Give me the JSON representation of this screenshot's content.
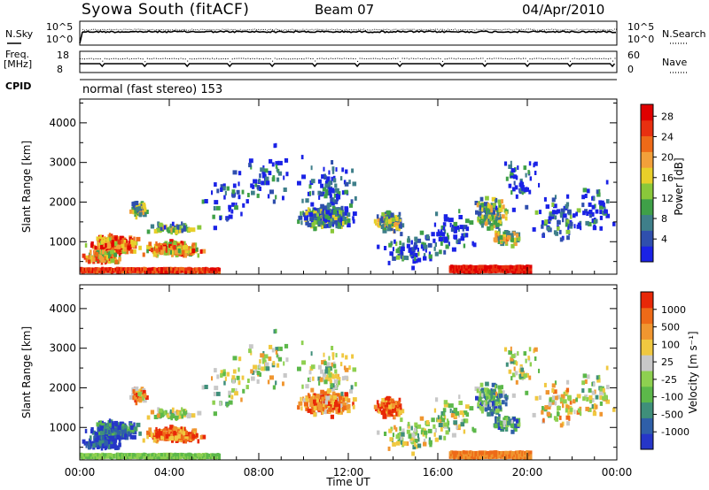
{
  "header": {
    "station": "Syowa South (fitACF)",
    "beam": "Beam 07",
    "date": "04/Apr/2010"
  },
  "chart_data": {
    "type": "heatmap",
    "time_axis": {
      "label": "Time UT",
      "range": [
        "00:00",
        "24:00"
      ],
      "ticks": [
        "00:00",
        "04:00",
        "08:00",
        "12:00",
        "16:00",
        "20:00",
        "00:00"
      ]
    },
    "noise_panel": {
      "left_label": "N.Sky",
      "right_label": "N.Search",
      "left_ticks": [
        "10^5",
        "10^0"
      ],
      "right_ticks": [
        "10^5",
        "10^0"
      ]
    },
    "freq_panel": {
      "left_label_1": "Freq.",
      "left_label_2": "[MHz]",
      "right_label": "Nave",
      "left_ticks": [
        "18",
        "8"
      ],
      "right_ticks": [
        "60",
        "0"
      ]
    },
    "cpid_panel": {
      "label": "CPID",
      "text": "normal (fast stereo) 153"
    },
    "power_panel": {
      "ylabel": "Slant Range [km]",
      "yticks": [
        1000,
        2000,
        3000,
        4000
      ],
      "ylim": [
        180,
        4600
      ],
      "colorbar_label": "Power [dB]",
      "colorbar_ticks": [
        "4",
        "8",
        "12",
        "16",
        "20",
        "24",
        "28"
      ],
      "colors": [
        "#1a22e6",
        "#2f4fad",
        "#3f7f8a",
        "#3fa048",
        "#8ac83a",
        "#e8cf2a",
        "#f2a03a",
        "#ee6a18",
        "#e83010",
        "#e00000"
      ]
    },
    "velocity_panel": {
      "ylabel": "Slant Range [km]",
      "yticks": [
        1000,
        2000,
        3000,
        4000
      ],
      "ylim": [
        180,
        4600
      ],
      "colorbar_label": "Velocity [m s⁻¹]",
      "colorbar_ticks": [
        "1000",
        "500",
        "100",
        "25",
        "-25",
        "-100",
        "-500",
        "-1000"
      ],
      "colors": [
        "#2636c8",
        "#2f5fa8",
        "#3f8f7a",
        "#5cb84a",
        "#8ed050",
        "#c8c8c8",
        "#f0c840",
        "#f09630",
        "#ee6a18",
        "#e82808"
      ]
    }
  }
}
